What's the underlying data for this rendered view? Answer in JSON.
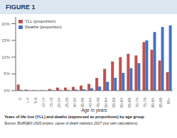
{
  "chart_data": {
    "type": "bar",
    "title": "FIGURE 1",
    "xlabel": "Age in years",
    "categories": [
      "0",
      "1-4",
      "5-9",
      "10-14",
      "15-19",
      "20-24",
      "25-29",
      "30-34",
      "35-39",
      "40-44",
      "45-49",
      "50-54",
      "55-59",
      "60-64",
      "65-69",
      "70-74",
      "75-79",
      "80-84",
      "85-89",
      "90+"
    ],
    "series": [
      {
        "name": "YLL (proportion)",
        "color": "#C0504D",
        "values": [
          1.8,
          0.3,
          0.1,
          0.1,
          0.5,
          0.9,
          0.9,
          1.1,
          1.5,
          2.0,
          3.8,
          6.5,
          8.7,
          10.0,
          11.0,
          10.5,
          14.5,
          12.2,
          9.0,
          5.5
        ]
      },
      {
        "name": "Deaths (proportion)",
        "color": "#4472C4",
        "values": [
          0.2,
          0.05,
          0.02,
          0.02,
          0.1,
          0.2,
          0.2,
          0.3,
          0.4,
          0.7,
          1.2,
          2.6,
          3.8,
          5.3,
          6.7,
          8.2,
          15.0,
          17.5,
          19.0,
          19.5
        ]
      }
    ],
    "ylim": [
      0,
      22
    ],
    "yticks": [
      {
        "value": 0,
        "label": "0%"
      },
      {
        "value": 5,
        "label": "5%"
      },
      {
        "value": 10,
        "label": "10%"
      },
      {
        "value": 15,
        "label": "15%"
      },
      {
        "value": 20,
        "label": "20%"
      }
    ],
    "legend": "upper left",
    "grid": false,
    "annotations": [
      "Years of life lost (YLL) and deaths (expressed as proportions) by age group",
      "Source: BURDEN 2020 project, cause of death statistics 2017 (our own calculations)"
    ]
  }
}
